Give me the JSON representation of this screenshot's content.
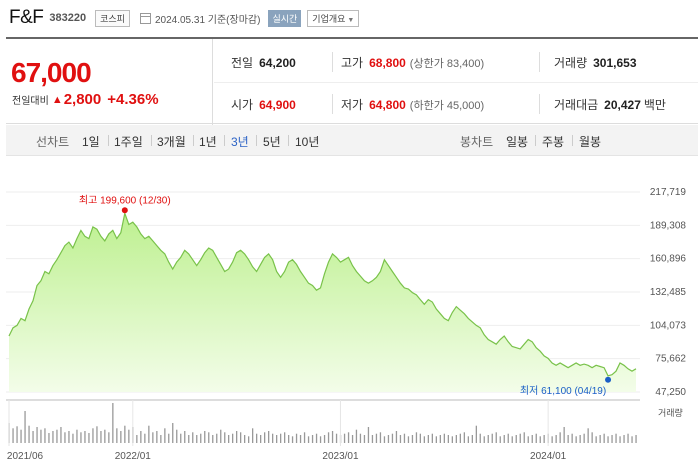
{
  "header": {
    "name": "F&F",
    "code": "383220",
    "market": "코스피",
    "date": "2024.05.31 기준(장마감)",
    "realtime": "실시간",
    "corp_info": "기업개요"
  },
  "price": {
    "current": "67,000",
    "change_label": "전일대비",
    "change_amount": "2,800",
    "change_pct": "+4.36%",
    "colors": {
      "up": "#e01010",
      "text": "#222222"
    }
  },
  "stats": {
    "prev_close": {
      "label": "전일",
      "value": "64,200"
    },
    "high": {
      "label": "고가",
      "value": "68,800",
      "limit": "(상한가 83,400)"
    },
    "volume": {
      "label": "거래량",
      "value": "301,653"
    },
    "open": {
      "label": "시가",
      "value": "64,900"
    },
    "low": {
      "label": "저가",
      "value": "64,800",
      "limit": "(하한가 45,000)"
    },
    "trade_value": {
      "label": "거래대금",
      "value": "20,427",
      "unit": "백만"
    }
  },
  "period_bar": {
    "line_title": "선차트",
    "periods": [
      "1일",
      "1주일",
      "3개월",
      "1년",
      "3년",
      "5년",
      "10년"
    ],
    "selected": "3년",
    "candle_title": "봉차트",
    "candles": [
      "일봉",
      "주봉",
      "월봉"
    ]
  },
  "chart_data": {
    "type": "area",
    "y_ticks": [
      "217,719",
      "189,308",
      "160,896",
      "132,485",
      "104,073",
      "75,662",
      "47,250"
    ],
    "ylim": [
      47250,
      217719
    ],
    "x_labels": [
      "2021/06",
      "2022/01",
      "2023/01",
      "2024/01"
    ],
    "x_label_positions_idx": [
      0,
      31,
      83,
      135
    ],
    "annotations": {
      "high": {
        "text": "최고 199,600 (12/30)",
        "idx": 29,
        "value": 199600
      },
      "low": {
        "text": "최저 61,100 (04/19)",
        "idx": 150,
        "value": 61100
      }
    },
    "volume_label": "거래량",
    "colors": {
      "line": "#79c24a",
      "fill_top": "#bdf08f",
      "fill_bottom": "#f3fde9",
      "high_marker": "#e01010",
      "low_marker": "#1a5fc6",
      "volume": "#999999"
    },
    "values": [
      95000,
      102000,
      104000,
      110000,
      108000,
      118000,
      125000,
      138000,
      142000,
      150000,
      148000,
      155000,
      160000,
      166000,
      172000,
      175000,
      170000,
      178000,
      185000,
      180000,
      178000,
      188000,
      186000,
      180000,
      176000,
      182000,
      185000,
      178000,
      183000,
      199600,
      190000,
      192000,
      188000,
      182000,
      178000,
      180000,
      176000,
      172000,
      168000,
      165000,
      158000,
      152000,
      158000,
      162000,
      168000,
      165000,
      160000,
      155000,
      160000,
      166000,
      170000,
      168000,
      162000,
      156000,
      150000,
      152000,
      158000,
      166000,
      168000,
      165000,
      160000,
      154000,
      150000,
      156000,
      162000,
      165000,
      160000,
      150000,
      145000,
      150000,
      158000,
      160000,
      156000,
      150000,
      145000,
      140000,
      138000,
      134000,
      136000,
      148000,
      158000,
      165000,
      162000,
      158000,
      160000,
      162000,
      155000,
      150000,
      146000,
      142000,
      140000,
      142000,
      145000,
      150000,
      160000,
      155000,
      150000,
      145000,
      140000,
      136000,
      135000,
      132000,
      130000,
      126000,
      122000,
      126000,
      124000,
      118000,
      114000,
      110000,
      108000,
      115000,
      120000,
      117000,
      114000,
      110000,
      107000,
      104000,
      102000,
      96000,
      92000,
      90000,
      88000,
      92000,
      95000,
      90000,
      86000,
      85000,
      84000,
      88000,
      92000,
      90000,
      85000,
      82000,
      78000,
      76000,
      72000,
      70000,
      72000,
      70000,
      68000,
      70000,
      72000,
      70000,
      71000,
      70000,
      68000,
      70000,
      69000,
      68000,
      61100,
      62000,
      65000,
      72000,
      70000,
      67000,
      65000,
      67000
    ],
    "volumes": [
      30,
      22,
      25,
      20,
      48,
      26,
      18,
      24,
      20,
      22,
      15,
      18,
      20,
      24,
      16,
      18,
      14,
      20,
      16,
      18,
      15,
      22,
      25,
      18,
      20,
      16,
      60,
      22,
      18,
      26,
      20,
      24,
      12,
      18,
      14,
      26,
      16,
      18,
      12,
      22,
      14,
      30,
      20,
      14,
      18,
      12,
      16,
      12,
      14,
      18,
      16,
      12,
      14,
      20,
      16,
      12,
      14,
      18,
      16,
      12,
      10,
      22,
      14,
      12,
      16,
      18,
      14,
      12,
      14,
      16,
      12,
      10,
      14,
      12,
      16,
      10,
      12,
      14,
      10,
      12,
      16,
      18,
      14,
      12,
      14,
      16,
      12,
      20,
      14,
      12,
      24,
      12,
      14,
      16,
      10,
      12,
      14,
      18,
      12,
      14,
      10,
      12,
      16,
      14,
      10,
      12,
      14,
      10,
      12,
      14,
      12,
      10,
      12,
      14,
      16,
      10,
      12,
      26,
      14,
      10,
      12,
      14,
      16,
      10,
      12,
      14,
      10,
      12,
      14,
      16,
      10,
      12,
      14,
      10,
      12,
      14,
      10,
      12,
      16,
      24,
      12,
      14,
      10,
      12,
      14,
      22,
      16,
      10,
      12,
      14,
      10,
      12,
      14,
      10,
      12,
      14,
      10,
      12
    ]
  }
}
